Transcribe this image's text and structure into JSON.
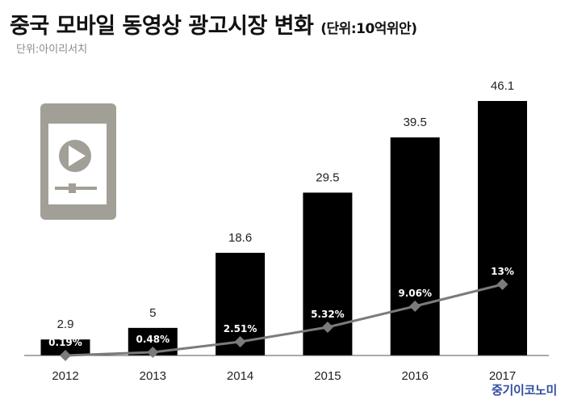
{
  "header": {
    "title": "중국 모바일 동영상 광고시장 변화",
    "unit": "(단위:10억위안)",
    "source": "단위:아이리서치"
  },
  "logo": {
    "text": "중기이코노미"
  },
  "icon": {
    "name": "mobile-video-icon",
    "color": "#a29f97"
  },
  "colors": {
    "bar": "#000000",
    "line": "#7b7b7b",
    "marker": "#7b7b7b"
  },
  "chart_data": {
    "type": "bar",
    "categories": [
      "2012",
      "2013",
      "2014",
      "2015",
      "2016",
      "2017"
    ],
    "series": [
      {
        "values": [
          2.9,
          5,
          18.6,
          29.5,
          39.5,
          46.1
        ],
        "labels": [
          "2.9",
          "5",
          "18.6",
          "29.5",
          "39.5",
          "46.1"
        ]
      },
      {
        "type": "line",
        "values": [
          0.19,
          0.48,
          2.51,
          5.32,
          9.06,
          13
        ],
        "labels": [
          "0.19%",
          "0.48%",
          "2.51%",
          "5.32%",
          "9.06%",
          "13%"
        ]
      }
    ],
    "title": "중국 모바일 동영상 광고시장 변화",
    "ylim": [
      0,
      46.1
    ],
    "grid": false
  }
}
